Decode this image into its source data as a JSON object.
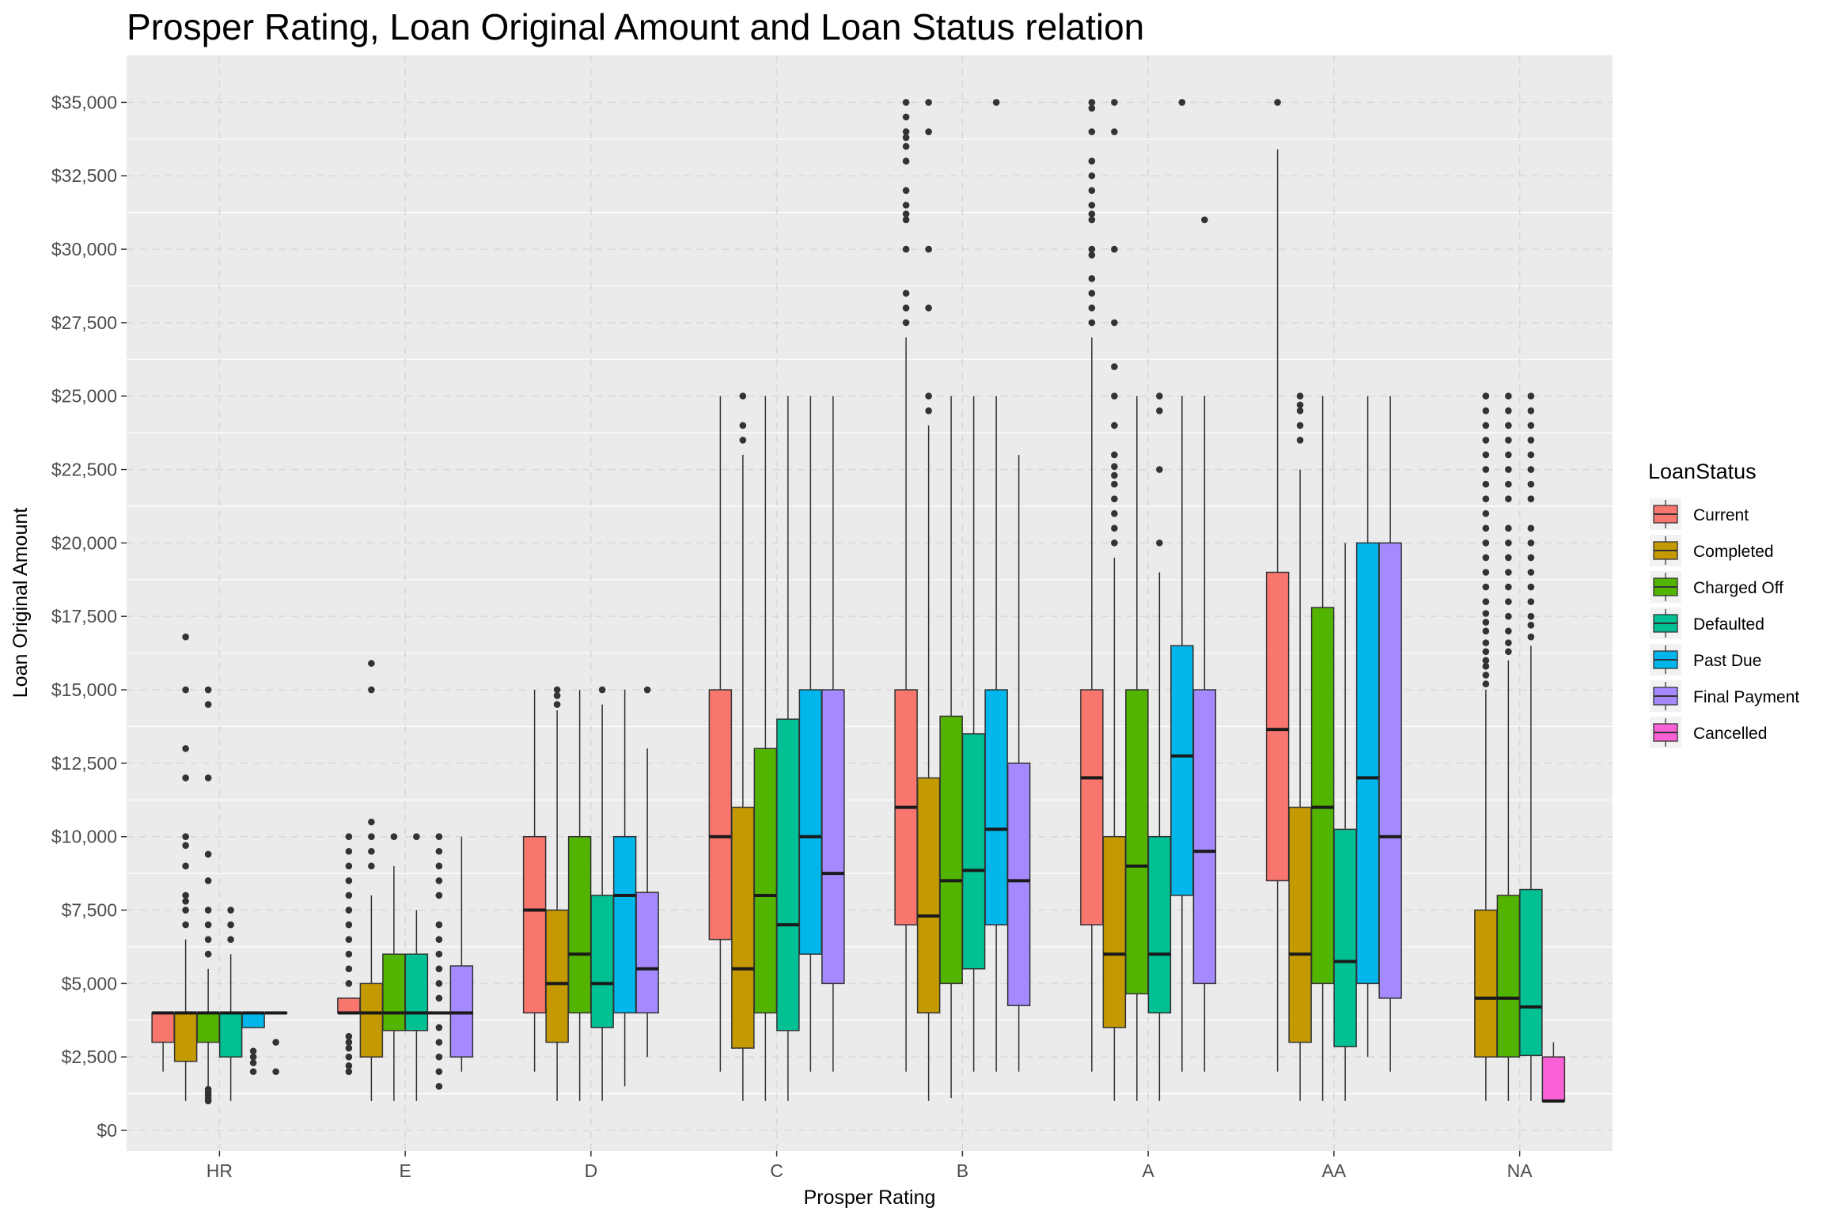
{
  "chart_data": {
    "type": "boxplot",
    "title": "Prosper Rating, Loan Original Amount and Loan Status relation",
    "xlabel": "Prosper Rating",
    "ylabel": "Loan Original Amount",
    "ylim": [
      -700,
      36600
    ],
    "y_ticks": [
      0,
      2500,
      5000,
      7500,
      10000,
      12500,
      15000,
      17500,
      20000,
      22500,
      25000,
      27500,
      30000,
      32500,
      35000
    ],
    "y_tick_labels": [
      "$0",
      "$2,500",
      "$5,000",
      "$7,500",
      "$10,000",
      "$12,500",
      "$15,000",
      "$17,500",
      "$20,000",
      "$22,500",
      "$25,000",
      "$27,500",
      "$30,000",
      "$32,500",
      "$35,000"
    ],
    "categories": [
      "HR",
      "E",
      "D",
      "C",
      "B",
      "A",
      "AA",
      "NA"
    ],
    "grid": true,
    "legend": {
      "title": "LoanStatus",
      "position": "right",
      "entries": [
        "Current",
        "Completed",
        "Charged Off",
        "Defaulted",
        "Past Due",
        "Final Payment",
        "Cancelled"
      ]
    },
    "colors": {
      "Current": "#F8766D",
      "Completed": "#C49A00",
      "Charged Off": "#53B400",
      "Defaulted": "#00C094",
      "Past Due": "#00B6EB",
      "Final Payment": "#A58AFF",
      "Cancelled": "#FB61D7"
    },
    "groups": [
      {
        "category": "HR",
        "boxes": [
          {
            "status": "Current",
            "lower": 2000,
            "q1": 3000,
            "median": 4000,
            "q3": 4000,
            "upper": 4000,
            "outliers": []
          },
          {
            "status": "Completed",
            "lower": 1000,
            "q1": 2350,
            "median": 4000,
            "q3": 4000,
            "upper": 6500,
            "outliers": [
              7000,
              7500,
              7800,
              8000,
              9000,
              9700,
              10000,
              12000,
              13000,
              15000,
              16800
            ]
          },
          {
            "status": "Charged Off",
            "lower": 1000,
            "q1": 3000,
            "median": 4000,
            "q3": 4000,
            "upper": 5500,
            "outliers": [
              1000,
              1100,
              1200,
              1300,
              1400,
              6000,
              6500,
              7000,
              7500,
              8500,
              9400,
              12000,
              14500,
              15000
            ]
          },
          {
            "status": "Defaulted",
            "lower": 1000,
            "q1": 2500,
            "median": 4000,
            "q3": 4000,
            "upper": 6000,
            "outliers": [
              6500,
              7000,
              7500
            ]
          },
          {
            "status": "Past Due",
            "lower": 3500,
            "q1": 3500,
            "median": 4000,
            "q3": 4000,
            "upper": 4000,
            "outliers": [
              2000,
              2300,
              2500,
              2700
            ]
          },
          {
            "status": "Final Payment",
            "lower": 4000,
            "q1": 4000,
            "median": 4000,
            "q3": 4000,
            "upper": 4000,
            "outliers": [
              2000,
              3000
            ]
          }
        ]
      },
      {
        "category": "E",
        "boxes": [
          {
            "status": "Current",
            "lower": 4000,
            "q1": 4000,
            "median": 4000,
            "q3": 4500,
            "upper": 4500,
            "outliers": [
              2000,
              2200,
              2500,
              2800,
              3000,
              3200,
              5000,
              5500,
              6000,
              6500,
              7000,
              7500,
              8000,
              8500,
              9000,
              9500,
              10000
            ]
          },
          {
            "status": "Completed",
            "lower": 1000,
            "q1": 2500,
            "median": 4000,
            "q3": 5000,
            "upper": 8000,
            "outliers": [
              9000,
              9500,
              10000,
              10500,
              15000,
              15900
            ]
          },
          {
            "status": "Charged Off",
            "lower": 1000,
            "q1": 3400,
            "median": 4000,
            "q3": 6000,
            "upper": 9000,
            "outliers": [
              10000
            ]
          },
          {
            "status": "Defaulted",
            "lower": 1000,
            "q1": 3400,
            "median": 4000,
            "q3": 6000,
            "upper": 7500,
            "outliers": [
              10000
            ]
          },
          {
            "status": "Past Due",
            "lower": 4000,
            "q1": 4000,
            "median": 4000,
            "q3": 4000,
            "upper": 4000,
            "outliers": [
              1500,
              2000,
              2500,
              3000,
              3500,
              4500,
              5000,
              5500,
              6000,
              6500,
              7000,
              8000,
              8500,
              9000,
              9500,
              10000
            ]
          },
          {
            "status": "Final Payment",
            "lower": 2000,
            "q1": 2500,
            "median": 4000,
            "q3": 5600,
            "upper": 10000,
            "outliers": []
          }
        ]
      },
      {
        "category": "D",
        "boxes": [
          {
            "status": "Current",
            "lower": 2000,
            "q1": 4000,
            "median": 7500,
            "q3": 10000,
            "upper": 15000,
            "outliers": []
          },
          {
            "status": "Completed",
            "lower": 1000,
            "q1": 3000,
            "median": 5000,
            "q3": 7500,
            "upper": 14300,
            "outliers": [
              14500,
              14800,
              15000
            ]
          },
          {
            "status": "Charged Off",
            "lower": 1000,
            "q1": 4000,
            "median": 6000,
            "q3": 10000,
            "upper": 15000,
            "outliers": []
          },
          {
            "status": "Defaulted",
            "lower": 1000,
            "q1": 3500,
            "median": 5000,
            "q3": 8000,
            "upper": 14500,
            "outliers": [
              15000
            ]
          },
          {
            "status": "Past Due",
            "lower": 1500,
            "q1": 4000,
            "median": 8000,
            "q3": 10000,
            "upper": 15000,
            "outliers": []
          },
          {
            "status": "Final Payment",
            "lower": 2500,
            "q1": 4000,
            "median": 5500,
            "q3": 8100,
            "upper": 13000,
            "outliers": [
              15000
            ]
          }
        ]
      },
      {
        "category": "C",
        "boxes": [
          {
            "status": "Current",
            "lower": 2000,
            "q1": 6500,
            "median": 10000,
            "q3": 15000,
            "upper": 25000,
            "outliers": []
          },
          {
            "status": "Completed",
            "lower": 1000,
            "q1": 2800,
            "median": 5500,
            "q3": 11000,
            "upper": 23000,
            "outliers": [
              23500,
              24000,
              25000
            ]
          },
          {
            "status": "Charged Off",
            "lower": 1000,
            "q1": 4000,
            "median": 8000,
            "q3": 13000,
            "upper": 25000,
            "outliers": []
          },
          {
            "status": "Defaulted",
            "lower": 1000,
            "q1": 3400,
            "median": 7000,
            "q3": 14000,
            "upper": 25000,
            "outliers": []
          },
          {
            "status": "Past Due",
            "lower": 2000,
            "q1": 6000,
            "median": 10000,
            "q3": 15000,
            "upper": 25000,
            "outliers": []
          },
          {
            "status": "Final Payment",
            "lower": 2000,
            "q1": 5000,
            "median": 8750,
            "q3": 15000,
            "upper": 25000,
            "outliers": []
          }
        ]
      },
      {
        "category": "B",
        "boxes": [
          {
            "status": "Current",
            "lower": 2000,
            "q1": 7000,
            "median": 11000,
            "q3": 15000,
            "upper": 27000,
            "outliers": [
              27500,
              28000,
              28500,
              30000,
              31000,
              31200,
              31500,
              32000,
              33000,
              33500,
              33800,
              34000,
              34500,
              35000
            ]
          },
          {
            "status": "Completed",
            "lower": 1000,
            "q1": 4000,
            "median": 7300,
            "q3": 12000,
            "upper": 24000,
            "outliers": [
              24500,
              25000,
              28000,
              30000,
              34000,
              35000
            ]
          },
          {
            "status": "Charged Off",
            "lower": 1100,
            "q1": 5000,
            "median": 8500,
            "q3": 14100,
            "upper": 25000,
            "outliers": []
          },
          {
            "status": "Defaulted",
            "lower": 2000,
            "q1": 5500,
            "median": 8850,
            "q3": 13500,
            "upper": 25000,
            "outliers": []
          },
          {
            "status": "Past Due",
            "lower": 2000,
            "q1": 7000,
            "median": 10250,
            "q3": 15000,
            "upper": 25000,
            "outliers": [
              35000
            ]
          },
          {
            "status": "Final Payment",
            "lower": 2000,
            "q1": 4250,
            "median": 8500,
            "q3": 12500,
            "upper": 23000,
            "outliers": []
          }
        ]
      },
      {
        "category": "A",
        "boxes": [
          {
            "status": "Current",
            "lower": 2000,
            "q1": 7000,
            "median": 12000,
            "q3": 15000,
            "upper": 27000,
            "outliers": [
              27500,
              28000,
              28500,
              29000,
              29800,
              30000,
              31000,
              31200,
              31500,
              32000,
              32500,
              33000,
              34000,
              34800,
              35000
            ]
          },
          {
            "status": "Completed",
            "lower": 1000,
            "q1": 3500,
            "median": 6000,
            "q3": 10000,
            "upper": 19500,
            "outliers": [
              20000,
              20500,
              21000,
              21500,
              22000,
              22300,
              22600,
              23000,
              24000,
              25000,
              26000,
              27500,
              30000,
              34000,
              35000
            ]
          },
          {
            "status": "Charged Off",
            "lower": 1000,
            "q1": 4650,
            "median": 9000,
            "q3": 15000,
            "upper": 25000,
            "outliers": []
          },
          {
            "status": "Defaulted",
            "lower": 1000,
            "q1": 4000,
            "median": 6000,
            "q3": 10000,
            "upper": 19000,
            "outliers": [
              20000,
              22500,
              24500,
              25000
            ]
          },
          {
            "status": "Past Due",
            "lower": 2000,
            "q1": 8000,
            "median": 12750,
            "q3": 16500,
            "upper": 25000,
            "outliers": [
              35000
            ]
          },
          {
            "status": "Final Payment",
            "lower": 2000,
            "q1": 5000,
            "median": 9500,
            "q3": 15000,
            "upper": 25000,
            "outliers": [
              31000
            ]
          }
        ]
      },
      {
        "category": "AA",
        "boxes": [
          {
            "status": "Current",
            "lower": 2000,
            "q1": 8500,
            "median": 13650,
            "q3": 19000,
            "upper": 33400,
            "outliers": [
              35000
            ]
          },
          {
            "status": "Completed",
            "lower": 1000,
            "q1": 3000,
            "median": 6000,
            "q3": 11000,
            "upper": 22500,
            "outliers": [
              23500,
              24000,
              24500,
              24700,
              25000
            ]
          },
          {
            "status": "Charged Off",
            "lower": 1000,
            "q1": 5000,
            "median": 11000,
            "q3": 17800,
            "upper": 25000,
            "outliers": []
          },
          {
            "status": "Defaulted",
            "lower": 1000,
            "q1": 2850,
            "median": 5750,
            "q3": 10250,
            "upper": 20000,
            "outliers": []
          },
          {
            "status": "Past Due",
            "lower": 2500,
            "q1": 5000,
            "median": 12000,
            "q3": 20000,
            "upper": 25000,
            "outliers": []
          },
          {
            "status": "Final Payment",
            "lower": 2000,
            "q1": 4500,
            "median": 10000,
            "q3": 20000,
            "upper": 25000,
            "outliers": []
          }
        ]
      },
      {
        "category": "NA",
        "boxes": [
          {
            "status": "Completed",
            "lower": 1000,
            "q1": 2500,
            "median": 4500,
            "q3": 7500,
            "upper": 15000,
            "outliers": [
              15200,
              15500,
              15800,
              16000,
              16300,
              16600,
              17000,
              17300,
              17600,
              18000,
              18500,
              19000,
              19500,
              20000,
              20500,
              21000,
              21500,
              22000,
              22500,
              23000,
              23500,
              24000,
              24500,
              25000
            ]
          },
          {
            "status": "Charged Off",
            "lower": 1000,
            "q1": 2500,
            "median": 4500,
            "q3": 8000,
            "upper": 16000,
            "outliers": [
              16300,
              16600,
              17000,
              17500,
              18000,
              18500,
              19000,
              19500,
              20000,
              20500,
              21500,
              22000,
              22500,
              23000,
              23500,
              24000,
              24500,
              25000
            ]
          },
          {
            "status": "Defaulted",
            "lower": 1000,
            "q1": 2550,
            "median": 4200,
            "q3": 8200,
            "upper": 16500,
            "outliers": [
              16800,
              17200,
              17500,
              18000,
              18500,
              19000,
              19500,
              20000,
              20500,
              21500,
              22000,
              22500,
              23000,
              23500,
              24000,
              24500,
              25000
            ]
          },
          {
            "status": "Cancelled",
            "lower": 1000,
            "q1": 1000,
            "median": 1000,
            "q3": 2500,
            "upper": 3000,
            "outliers": []
          }
        ]
      }
    ]
  }
}
